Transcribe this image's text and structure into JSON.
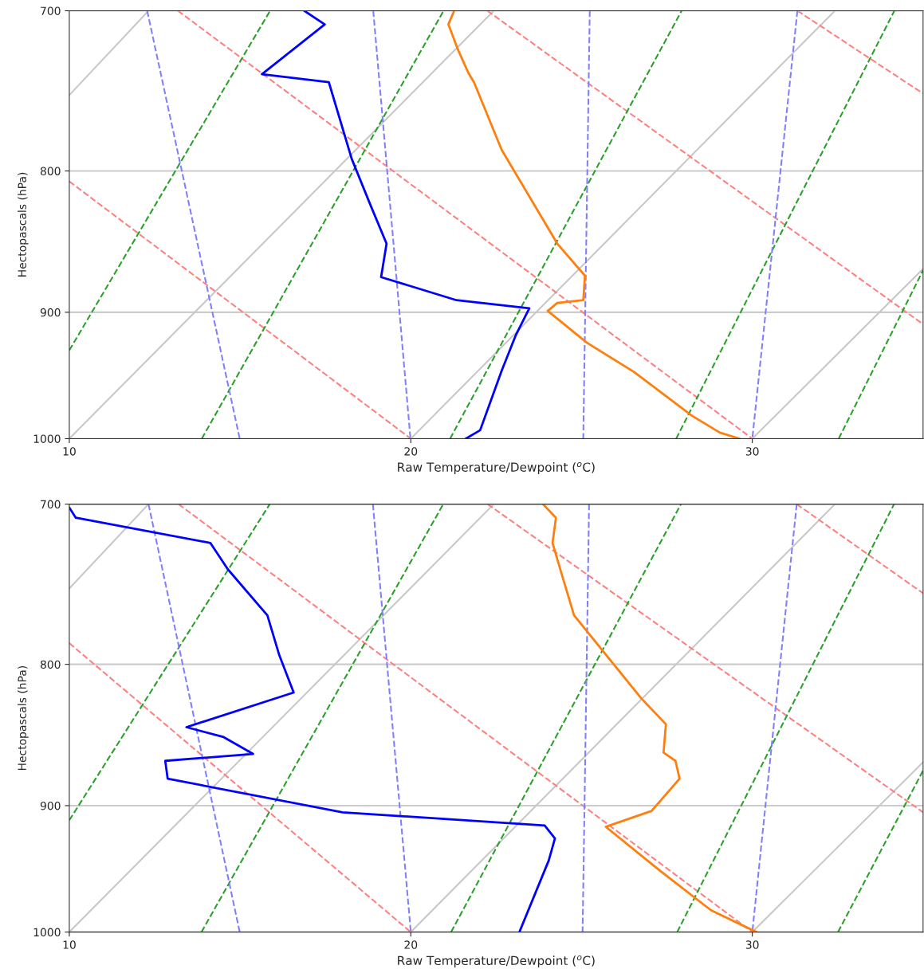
{
  "chart_data": [
    {
      "type": "line",
      "xlabel": "Raw Temperature/Dewpoint ($^{o}$C)",
      "ylabel": "Hectopascals (hPa)",
      "xlim": [
        10,
        35
      ],
      "xticks": [
        10,
        20,
        30
      ],
      "ylim": [
        1000,
        700
      ],
      "yticks": [
        700,
        800,
        900,
        1000
      ],
      "log": "y",
      "grid": "y",
      "marker": "none",
      "series": [
        {
          "color": "#c8c8c8",
          "line_style": "solid",
          "x": [
            10,
            12.32
          ],
          "values": [
            751,
            700
          ]
        },
        {
          "color": "#c8c8c8",
          "line_style": "solid",
          "x": [
            10,
            22.43
          ],
          "values": [
            1000,
            700
          ]
        },
        {
          "color": "#c8c8c8",
          "line_style": "solid",
          "x": [
            20,
            32.42
          ],
          "values": [
            1000,
            700
          ]
        },
        {
          "color": "#c8c8c8",
          "line_style": "solid",
          "x": [
            30,
            35
          ],
          "values": [
            1000,
            868
          ]
        },
        {
          "color": "#ff8080",
          "line_style": "dashed",
          "x": [
            10,
            20
          ],
          "values": [
            807,
            1000
          ]
        },
        {
          "color": "#ff8080",
          "line_style": "dashed",
          "x": [
            13.18,
            30
          ],
          "values": [
            700,
            1000
          ]
        },
        {
          "color": "#ff8080",
          "line_style": "dashed",
          "x": [
            22.24,
            35
          ],
          "values": [
            700,
            909
          ]
        },
        {
          "color": "#ff8080",
          "line_style": "dashed",
          "x": [
            31.32,
            35
          ],
          "values": [
            700,
            750
          ]
        },
        {
          "color": "#2ca02c",
          "line_style": "dashed",
          "x": [
            10,
            15.88
          ],
          "values": [
            929,
            700
          ]
        },
        {
          "color": "#2ca02c",
          "line_style": "dashed",
          "x": [
            13.88,
            20.96
          ],
          "values": [
            1000,
            700
          ]
        },
        {
          "color": "#2ca02c",
          "line_style": "dashed",
          "x": [
            21.15,
            27.93
          ],
          "values": [
            1000,
            700
          ]
        },
        {
          "color": "#2ca02c",
          "line_style": "dashed",
          "x": [
            27.77,
            34.16
          ],
          "values": [
            1000,
            700
          ]
        },
        {
          "color": "#2ca02c",
          "line_style": "dashed",
          "x": [
            32.53,
            35
          ],
          "values": [
            1000,
            869
          ]
        },
        {
          "color": "#8080ff",
          "line_style": "dashed",
          "x": [
            12.28,
            14.99
          ],
          "values": [
            700,
            1000
          ]
        },
        {
          "color": "#8080ff",
          "line_style": "dashed",
          "x": [
            18.9,
            19.99
          ],
          "values": [
            700,
            1000
          ]
        },
        {
          "color": "#8080ff",
          "line_style": "dashed",
          "x": [
            25.24,
            25.05
          ],
          "values": [
            700,
            1000
          ]
        },
        {
          "color": "#8080ff",
          "line_style": "dashed",
          "x": [
            31.32,
            30.0
          ],
          "values": [
            700,
            1000
          ]
        },
        {
          "color": "#ff7f0e",
          "line_style": "solid",
          "x": [
            21.27,
            21.1,
            21.38,
            21.68,
            21.85,
            22.66,
            24.29,
            25.1,
            25.05,
            24.29,
            24.01,
            25.15,
            26.54,
            28.23,
            29.05,
            29.63
          ],
          "values": [
            700,
            708,
            723,
            737,
            743,
            786,
            850,
            873,
            891,
            893,
            899,
            923,
            946,
            981,
            995,
            1000
          ]
        },
        {
          "color": "#0000ff",
          "line_style": "solid",
          "x": [
            16.88,
            17.48,
            15.64,
            17.6,
            18.27,
            18.8,
            19.29,
            19.13,
            21.34,
            23.47,
            23.08,
            22.66,
            22.03,
            21.61
          ],
          "values": [
            700,
            708,
            738,
            743,
            792,
            822,
            850,
            874,
            891,
            897,
            917,
            945,
            993,
            1000
          ]
        }
      ]
    },
    {
      "type": "line",
      "xlabel": "Raw Temperature/Dewpoint ($^{o}$C)",
      "ylabel": "Hectopascals (hPa)",
      "xlim": [
        10,
        35
      ],
      "xticks": [
        10,
        20,
        30
      ],
      "ylim": [
        1000,
        700
      ],
      "yticks": [
        700,
        800,
        900,
        1000
      ],
      "log": "y",
      "grid": "y",
      "marker": "none",
      "series": [
        {
          "color": "#c8c8c8",
          "line_style": "solid",
          "x": [
            10,
            12.32
          ],
          "values": [
            751,
            700
          ]
        },
        {
          "color": "#c8c8c8",
          "line_style": "solid",
          "x": [
            10,
            22.43
          ],
          "values": [
            1000,
            700
          ]
        },
        {
          "color": "#c8c8c8",
          "line_style": "solid",
          "x": [
            20,
            32.42
          ],
          "values": [
            1000,
            700
          ]
        },
        {
          "color": "#c8c8c8",
          "line_style": "solid",
          "x": [
            30,
            35
          ],
          "values": [
            1000,
            868
          ]
        },
        {
          "color": "#ff8080",
          "line_style": "dashed",
          "x": [
            10,
            20
          ],
          "values": [
            786,
            1000
          ]
        },
        {
          "color": "#ff8080",
          "line_style": "dashed",
          "x": [
            13.2,
            30
          ],
          "values": [
            700,
            1000
          ]
        },
        {
          "color": "#ff8080",
          "line_style": "dashed",
          "x": [
            22.25,
            35
          ],
          "values": [
            700,
            905
          ]
        },
        {
          "color": "#ff8080",
          "line_style": "dashed",
          "x": [
            31.3,
            35
          ],
          "values": [
            700,
            754
          ]
        },
        {
          "color": "#2ca02c",
          "line_style": "dashed",
          "x": [
            10,
            15.87
          ],
          "values": [
            911,
            700
          ]
        },
        {
          "color": "#2ca02c",
          "line_style": "dashed",
          "x": [
            13.87,
            20.95
          ],
          "values": [
            1000,
            700
          ]
        },
        {
          "color": "#2ca02c",
          "line_style": "dashed",
          "x": [
            21.18,
            27.91
          ],
          "values": [
            1000,
            700
          ]
        },
        {
          "color": "#2ca02c",
          "line_style": "dashed",
          "x": [
            27.8,
            34.15
          ],
          "values": [
            1000,
            700
          ]
        },
        {
          "color": "#2ca02c",
          "line_style": "dashed",
          "x": [
            32.51,
            35
          ],
          "values": [
            1000,
            874
          ]
        },
        {
          "color": "#8080ff",
          "line_style": "dashed",
          "x": [
            12.32,
            14.99
          ],
          "values": [
            700,
            1000
          ]
        },
        {
          "color": "#8080ff",
          "line_style": "dashed",
          "x": [
            18.89,
            20.0
          ],
          "values": [
            700,
            1000
          ]
        },
        {
          "color": "#8080ff",
          "line_style": "dashed",
          "x": [
            25.22,
            25.03
          ],
          "values": [
            700,
            1000
          ]
        },
        {
          "color": "#8080ff",
          "line_style": "dashed",
          "x": [
            31.3,
            30.0
          ],
          "values": [
            700,
            1000
          ]
        },
        {
          "color": "#ff7f0e",
          "line_style": "solid",
          "x": [
            23.87,
            24.25,
            24.15,
            24.39,
            24.78,
            26.75,
            27.47,
            27.4,
            27.75,
            27.87,
            27.05,
            25.71,
            27.29,
            28.79,
            30.12
          ],
          "values": [
            700,
            708,
            723,
            740,
            768,
            823,
            841,
            861,
            867,
            880,
            904,
            916,
            950,
            982,
            1000
          ]
        },
        {
          "color": "#0000ff",
          "line_style": "solid",
          "x": [
            10.0,
            10.19,
            14.13,
            14.64,
            15.8,
            16.15,
            16.57,
            13.43,
            14.52,
            15.38,
            12.81,
            12.88,
            18.0,
            23.92,
            24.22,
            24.04,
            23.18
          ],
          "values": [
            702,
            708,
            723,
            739,
            768,
            794,
            819,
            843,
            850,
            862,
            867,
            880,
            905,
            915,
            925,
            942,
            1000
          ]
        }
      ]
    }
  ]
}
